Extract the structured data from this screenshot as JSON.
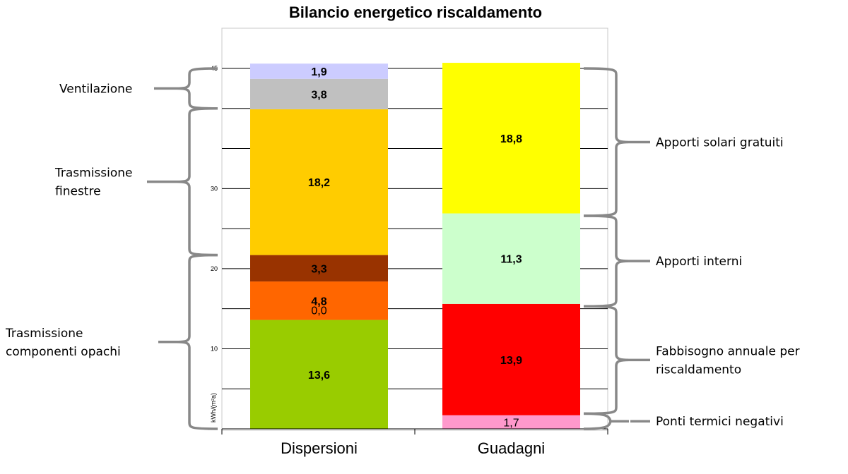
{
  "chart_data": {
    "type": "bar",
    "stacked": true,
    "title": "Bilancio energetico riscaldamento",
    "ylabel": "kWh/(m²a)",
    "ylim": [
      0,
      45
    ],
    "yticks": [
      10,
      20,
      30,
      45
    ],
    "gridlines": [
      5,
      10,
      15,
      20,
      25,
      30,
      35,
      40,
      45
    ],
    "categories": [
      "Dispersioni",
      "Guadagni"
    ],
    "bars": [
      {
        "category": "Dispersioni",
        "segments": [
          {
            "value": 13.6,
            "label": "13,6",
            "color": "#99cc00",
            "bold": true
          },
          {
            "value": 0.0,
            "label": "0,0",
            "color": "#99cc00",
            "bold": false
          },
          {
            "value": 4.8,
            "label": "4,8",
            "color": "#ff6600",
            "bold": true
          },
          {
            "value": 3.3,
            "label": "3,3",
            "color": "#993300",
            "bold": true
          },
          {
            "value": 18.2,
            "label": "18,2",
            "color": "#ffcc00",
            "bold": true
          },
          {
            "value": 3.8,
            "label": "3,8",
            "color": "#c0c0c0",
            "bold": true
          },
          {
            "value": 1.9,
            "label": "1,9",
            "color": "#ccccff",
            "bold": true
          }
        ]
      },
      {
        "category": "Guadagni",
        "segments": [
          {
            "value": 1.7,
            "label": "1,7",
            "color": "#ff99cc",
            "bold": false
          },
          {
            "value": 13.9,
            "label": "13,9",
            "color": "#ff0000",
            "bold": true
          },
          {
            "value": 11.3,
            "label": "11,3",
            "color": "#ccffcc",
            "bold": true
          },
          {
            "value": 18.8,
            "label": "18,8",
            "color": "#ffff00",
            "bold": true
          }
        ]
      }
    ],
    "annotations_left": [
      {
        "lines": [
          "Ventilazione"
        ],
        "from": 40,
        "to": 45
      },
      {
        "lines": [
          "Trasmissione",
          " finestre"
        ],
        "from": 21.7,
        "to": 40
      },
      {
        "lines": [
          "Trasmissione",
          "componenti opachi"
        ],
        "from": 0,
        "to": 21.7
      }
    ],
    "annotations_right": [
      {
        "lines": [
          "Apporti solari gratuiti"
        ],
        "from": 26.6,
        "to": 45
      },
      {
        "lines": [
          "Apporti interni"
        ],
        "from": 15.3,
        "to": 26.6
      },
      {
        "lines": [
          "Fabbisogno annuale per",
          "riscaldamento"
        ],
        "from": 1.9,
        "to": 15.3
      },
      {
        "lines": [
          "Ponti termici negativi"
        ],
        "from": 0,
        "to": 1.9
      }
    ]
  }
}
